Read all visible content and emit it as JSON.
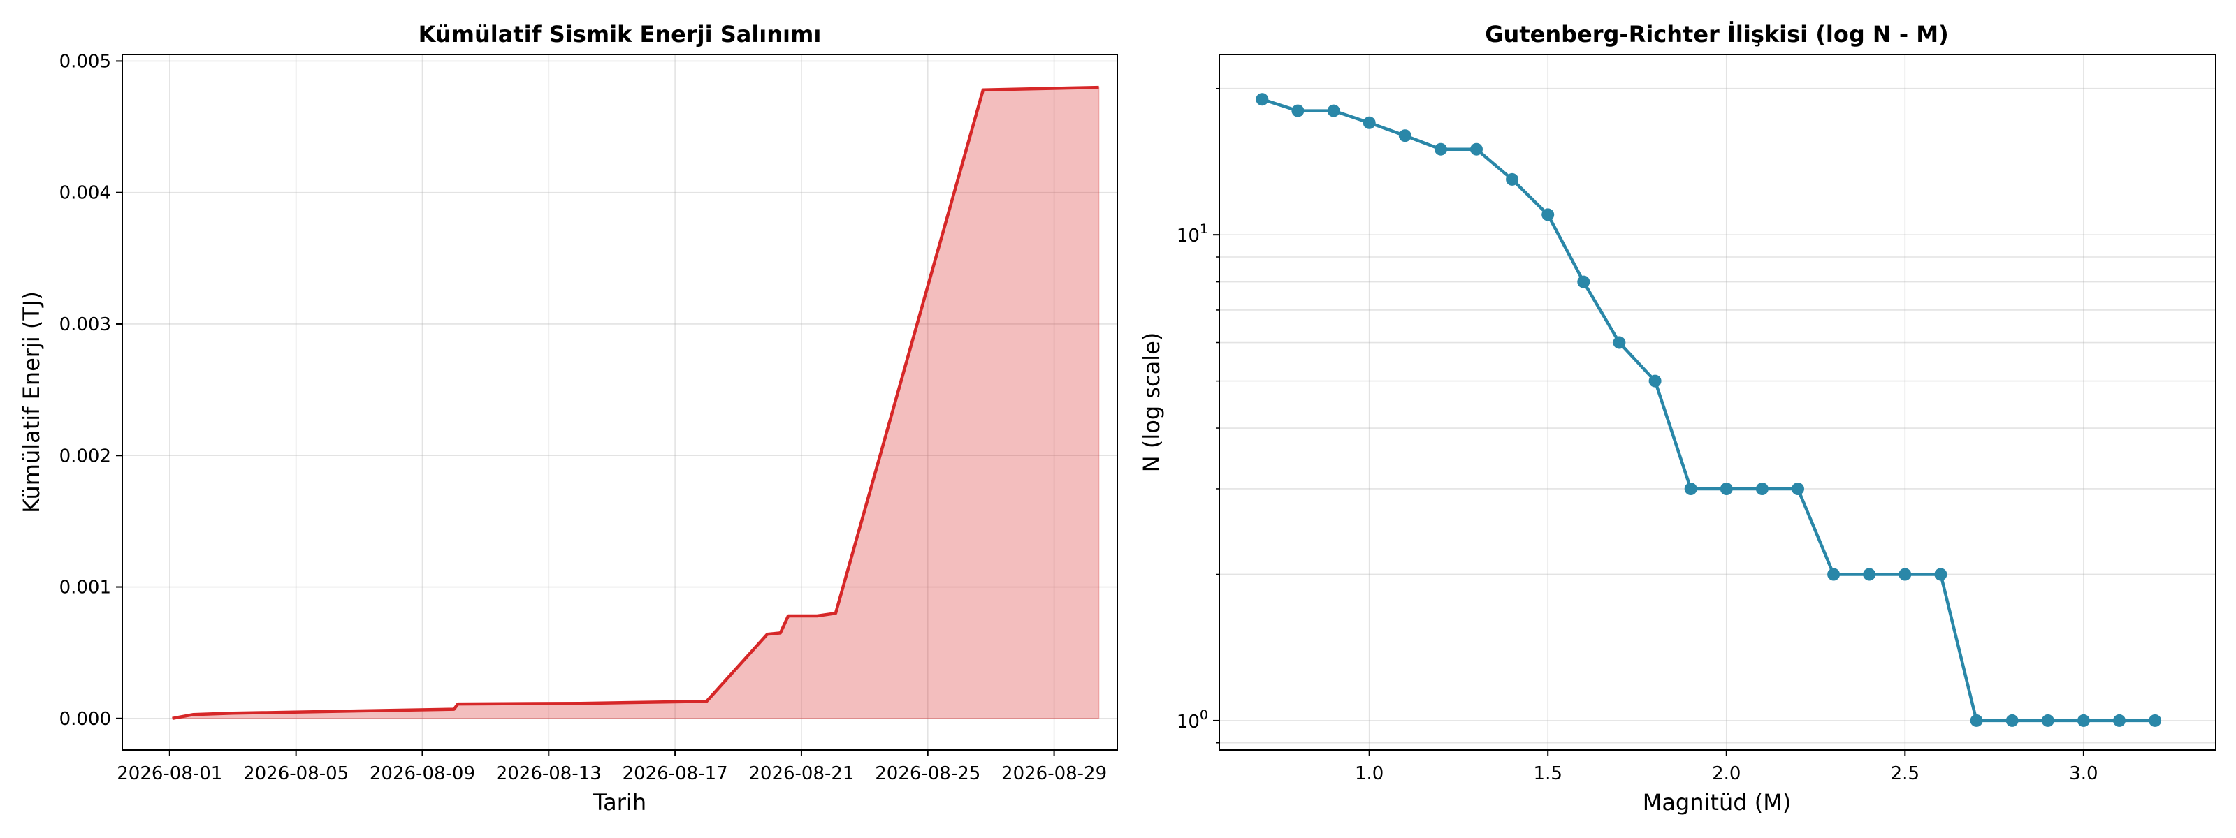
{
  "chart_data": [
    {
      "type": "area",
      "title": "Kümülatif Sismik Enerji Salınımı",
      "xlabel": "Tarih",
      "ylabel": "Kümülatif Enerji (TJ)",
      "x_tick_labels": [
        "2026-08-01",
        "2026-08-05",
        "2026-08-09",
        "2026-08-13",
        "2026-08-17",
        "2026-08-21",
        "2026-08-25",
        "2026-08-29"
      ],
      "y_tick_labels": [
        "0.000",
        "0.001",
        "0.002",
        "0.003",
        "0.004",
        "0.005"
      ],
      "xlim": [
        "2026-07-30 12:00",
        "2026-08-31 00:00"
      ],
      "ylim": [
        -0.00024,
        0.00505
      ],
      "grid": true,
      "colors": {
        "line": "#d62728",
        "fill": "#d62728"
      },
      "series": [
        {
          "points": [
            [
              "2026-08-01 02:00",
              0.0
            ],
            [
              "2026-08-01 18:00",
              3e-05
            ],
            [
              "2026-08-03 00:00",
              4e-05
            ],
            [
              "2026-08-10 00:00",
              7e-05
            ],
            [
              "2026-08-10 03:00",
              0.00011
            ],
            [
              "2026-08-14 00:00",
              0.000115
            ],
            [
              "2026-08-18 00:00",
              0.00013
            ],
            [
              "2026-08-19 22:00",
              0.00064
            ],
            [
              "2026-08-20 08:00",
              0.00065
            ],
            [
              "2026-08-20 14:00",
              0.00078
            ],
            [
              "2026-08-21 12:00",
              0.00078
            ],
            [
              "2026-08-22 02:00",
              0.0008
            ],
            [
              "2026-08-26 18:00",
              0.00478
            ],
            [
              "2026-08-30 10:00",
              0.0048
            ]
          ]
        }
      ]
    },
    {
      "type": "line",
      "title": "Gutenberg-Richter İlişkisi (log N - M)",
      "xlabel": "Magnitüd (M)",
      "ylabel": "N (log scale)",
      "y_scale": "log",
      "x_tick_labels": [
        "1.0",
        "1.5",
        "2.0",
        "2.5",
        "3.0"
      ],
      "x_ticks": [
        1.0,
        1.5,
        2.0,
        2.5,
        3.0
      ],
      "y_tick_labels": [
        {
          "base": "10",
          "exp": "0",
          "value": 1
        },
        {
          "base": "10",
          "exp": "1",
          "value": 10
        }
      ],
      "xlim": [
        0.58,
        3.37
      ],
      "ylim": [
        0.87,
        23.5
      ],
      "grid": true,
      "colors": {
        "line": "#2a87a8",
        "marker": "#2a87a8"
      },
      "series": [
        {
          "x": [
            0.7,
            0.8,
            0.9,
            1.0,
            1.1,
            1.2,
            1.3,
            1.4,
            1.5,
            1.6,
            1.7,
            1.8,
            1.9,
            2.0,
            2.1,
            2.2,
            2.3,
            2.4,
            2.5,
            2.6,
            2.7,
            2.8,
            2.9,
            3.0,
            3.1,
            3.2
          ],
          "y": [
            19,
            18,
            18,
            17,
            16,
            15,
            15,
            13,
            11,
            8,
            6,
            5,
            3,
            3,
            3,
            3,
            2,
            2,
            2,
            2,
            1,
            1,
            1,
            1,
            1,
            1
          ]
        }
      ]
    }
  ]
}
